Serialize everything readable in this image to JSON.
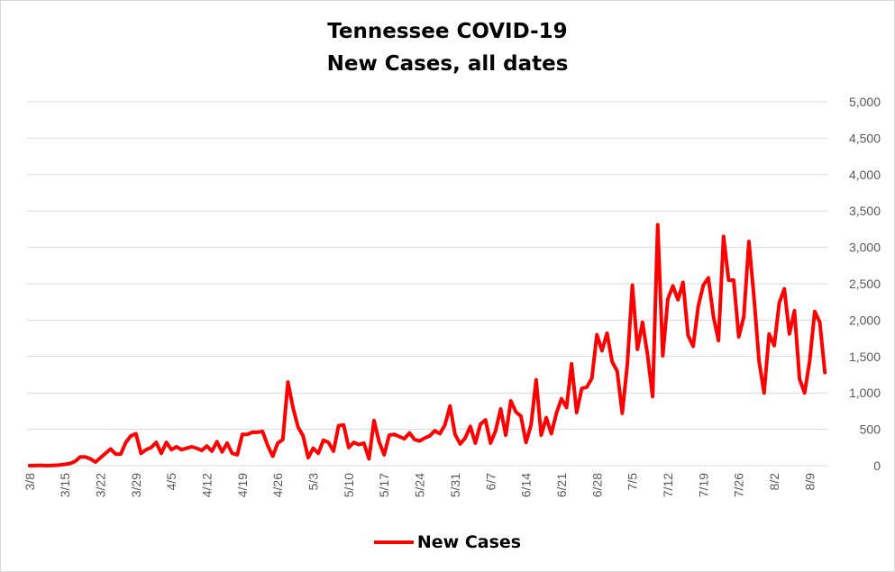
{
  "chart_data": {
    "type": "line",
    "title": "Tennessee COVID-19",
    "subtitle": "New Cases, all dates",
    "xlabel": "",
    "ylabel": "",
    "y_axis_position": "right",
    "ylim": [
      0,
      5000
    ],
    "y_ticks": [
      "0",
      "500",
      "1,000",
      "1,500",
      "2,000",
      "2,500",
      "3,000",
      "3,500",
      "4,000",
      "4,500",
      "5,000"
    ],
    "x_tick_labels": [
      "3/8",
      "3/15",
      "3/22",
      "3/29",
      "4/5",
      "4/12",
      "4/19",
      "4/26",
      "5/3",
      "5/10",
      "5/17",
      "5/24",
      "5/31",
      "6/7",
      "6/14",
      "6/21",
      "6/28",
      "7/5",
      "7/12",
      "7/19",
      "7/26",
      "8/2",
      "8/9"
    ],
    "grid": true,
    "legend_position": "bottom",
    "line_color": "#ff0000",
    "series": [
      {
        "name": "New Cases",
        "start_date": "3/8",
        "values": [
          1,
          1,
          4,
          1,
          1,
          5,
          10,
          20,
          30,
          60,
          120,
          120,
          95,
          50,
          110,
          170,
          230,
          160,
          160,
          320,
          410,
          440,
          170,
          220,
          250,
          320,
          170,
          320,
          220,
          260,
          220,
          240,
          260,
          240,
          210,
          270,
          200,
          330,
          190,
          310,
          170,
          150,
          430,
          430,
          460,
          460,
          470,
          280,
          130,
          310,
          360,
          1150,
          800,
          530,
          410,
          110,
          240,
          170,
          350,
          320,
          200,
          550,
          560,
          250,
          320,
          290,
          310,
          95,
          620,
          330,
          150,
          420,
          430,
          400,
          370,
          450,
          360,
          340,
          380,
          410,
          480,
          440,
          560,
          820,
          430,
          300,
          380,
          540,
          310,
          570,
          630,
          310,
          480,
          780,
          420,
          890,
          740,
          680,
          320,
          560,
          1180,
          420,
          660,
          440,
          720,
          920,
          800,
          1400,
          730,
          1060,
          1080,
          1200,
          1800,
          1580,
          1820,
          1430,
          1300,
          720,
          1390,
          2480,
          1600,
          1970,
          1520,
          950,
          3310,
          1510,
          2290,
          2470,
          2280,
          2520,
          1790,
          1640,
          2190,
          2480,
          2580,
          2050,
          1720,
          3150,
          2550,
          2550,
          1770,
          2050,
          3080,
          2320,
          1440,
          1000,
          1810,
          1650,
          2240,
          2430,
          1810,
          2130,
          1190,
          1000,
          1440,
          2120,
          1970,
          1280
        ]
      }
    ]
  }
}
